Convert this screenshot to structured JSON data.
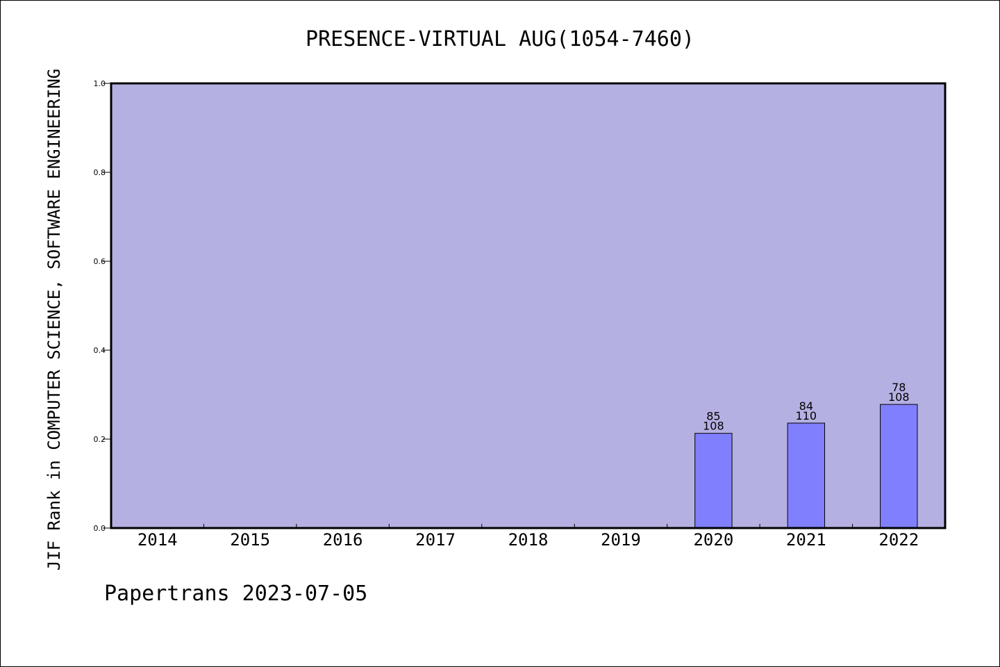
{
  "chart_data": {
    "type": "bar",
    "title": "PRESENCE-VIRTUAL AUG(1054-7460)",
    "ylabel": "JIF Rank in COMPUTER SCIENCE, SOFTWARE ENGINEERING",
    "xlabel": "",
    "footer": "Papertrans 2023-07-05",
    "categories": [
      "2014",
      "2015",
      "2016",
      "2017",
      "2018",
      "2019",
      "2020",
      "2021",
      "2022"
    ],
    "values": [
      null,
      null,
      null,
      null,
      null,
      null,
      0.213,
      0.236,
      0.278
    ],
    "bar_labels": [
      null,
      null,
      null,
      null,
      null,
      null,
      {
        "rank": "85",
        "total": "108"
      },
      {
        "rank": "84",
        "total": "110"
      },
      {
        "rank": "78",
        "total": "108"
      }
    ],
    "ylim": [
      0,
      1.0
    ],
    "yticks": [
      "0.0",
      "0.2",
      "0.4",
      "0.6",
      "0.8",
      "1.0"
    ],
    "grid": false,
    "legend": "none",
    "colors": {
      "plot_background": "#b5b0e2",
      "bar_fill": "#8080ff",
      "bar_stroke": "#000000",
      "axis": "#000000"
    }
  }
}
